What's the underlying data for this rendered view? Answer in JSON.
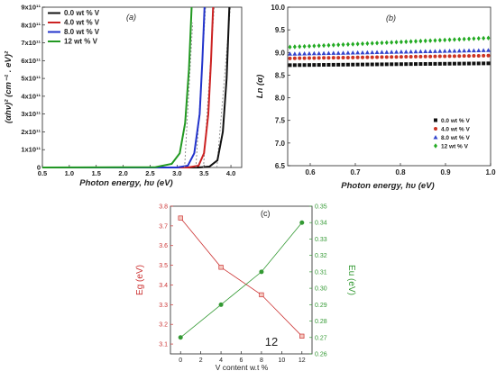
{
  "chart_data": [
    {
      "panel": "(a)",
      "type": "line",
      "xlabel": "Photon energy, hυ (eV)",
      "ylabel": "(αhν)² (cm⁻¹ . eV)²",
      "xlim": [
        0.5,
        4.2
      ],
      "ylim": [
        0,
        900000000000.0
      ],
      "xticks": [
        0.5,
        1.0,
        1.5,
        2.0,
        2.5,
        3.0,
        3.5,
        4.0
      ],
      "xtick_labels": [
        "0.5",
        "1.0",
        "1.5",
        "2.0",
        "2.5",
        "3.0",
        "3.5",
        "4.0"
      ],
      "yticks": [
        0,
        100000000000.0,
        200000000000.0,
        300000000000.0,
        400000000000.0,
        500000000000.0,
        600000000000.0,
        700000000000.0,
        800000000000.0,
        900000000000.0
      ],
      "ytick_labels": [
        "0",
        "1x10¹¹",
        "2x10¹¹",
        "3x10¹¹",
        "4x10¹¹",
        "5x10¹¹",
        "6x10¹¹",
        "7x10¹¹",
        "8x10¹¹",
        "9x10¹¹"
      ],
      "legend_position": "top-left",
      "series": [
        {
          "name": "0.0 wt % V",
          "color": "#111111",
          "eg": 3.74,
          "xy": [
            [
              0.5,
              0
            ],
            [
              3.4,
              0
            ],
            [
              3.6,
              5000000000.0
            ],
            [
              3.75,
              40000000000.0
            ],
            [
              3.85,
              200000000000.0
            ],
            [
              3.92,
              500000000000.0
            ],
            [
              3.97,
              900000000000.0
            ]
          ]
        },
        {
          "name": "4.0 wt % V",
          "color": "#cc2222",
          "eg": 3.49,
          "xy": [
            [
              0.5,
              0
            ],
            [
              3.2,
              0
            ],
            [
              3.4,
              10000000000.0
            ],
            [
              3.5,
              80000000000.0
            ],
            [
              3.58,
              300000000000.0
            ],
            [
              3.63,
              600000000000.0
            ],
            [
              3.67,
              900000000000.0
            ]
          ]
        },
        {
          "name": "8.0 wt % V",
          "color": "#2233cc",
          "eg": 3.35,
          "xy": [
            [
              0.5,
              0
            ],
            [
              3.0,
              0
            ],
            [
              3.2,
              10000000000.0
            ],
            [
              3.32,
              80000000000.0
            ],
            [
              3.42,
              300000000000.0
            ],
            [
              3.47,
              600000000000.0
            ],
            [
              3.51,
              900000000000.0
            ]
          ]
        },
        {
          "name": "12 wt % V",
          "color": "#229922",
          "eg": 3.14,
          "xy": [
            [
              0.5,
              0
            ],
            [
              2.6,
              2000000000.0
            ],
            [
              2.9,
              20000000000.0
            ],
            [
              3.05,
              80000000000.0
            ],
            [
              3.15,
              250000000000.0
            ],
            [
              3.22,
              550000000000.0
            ],
            [
              3.27,
              900000000000.0
            ]
          ]
        }
      ]
    },
    {
      "panel": "(b)",
      "type": "scatter",
      "xlabel": "Photon energy, hυ (eV)",
      "ylabel": "Ln (α)",
      "xlim": [
        0.55,
        1.0
      ],
      "ylim": [
        6.5,
        10.0
      ],
      "xticks": [
        0.6,
        0.7,
        0.8,
        0.9,
        1.0
      ],
      "xtick_labels": [
        "0.6",
        "0.7",
        "0.8",
        "0.9",
        "1.0"
      ],
      "yticks": [
        6.5,
        7.0,
        7.5,
        8.0,
        8.5,
        9.0,
        9.5,
        10.0
      ],
      "ytick_labels": [
        "6.5",
        "7.0",
        "7.5",
        "8.0",
        "8.5",
        "9.0",
        "9.5",
        "10.0"
      ],
      "legend_position": "bottom-right",
      "series": [
        {
          "name": "0.0 wt % V",
          "color": "#111111",
          "marker": "square",
          "start": 8.72,
          "end": 8.76
        },
        {
          "name": "4.0 wt % V",
          "color": "#cc3322",
          "marker": "circle",
          "start": 8.87,
          "end": 8.93
        },
        {
          "name": "8.0 wt % V",
          "color": "#3344cc",
          "marker": "triangle",
          "start": 8.97,
          "end": 9.05
        },
        {
          "name": "12 wt % V",
          "color": "#22aa22",
          "marker": "diamond",
          "start": 9.12,
          "end": 9.32
        }
      ]
    },
    {
      "panel": "(c)",
      "type": "line",
      "xlabel": "V content w.t %",
      "ylabel_left": "Eg (eV)",
      "ylabel_right": "Eu (eV)",
      "xlim": [
        -1,
        13
      ],
      "xticks": [
        0,
        2,
        4,
        6,
        8,
        10,
        12
      ],
      "xtick_labels": [
        "0",
        "2",
        "4",
        "6",
        "8",
        "10",
        "12"
      ],
      "ylim_left": [
        3.05,
        3.8
      ],
      "yticks_left": [
        3.1,
        3.2,
        3.3,
        3.4,
        3.5,
        3.6,
        3.7,
        3.8
      ],
      "ytick_labels_left": [
        "3.1",
        "3.2",
        "3.3",
        "3.4",
        "3.5",
        "3.6",
        "3.7",
        "3.8"
      ],
      "ylim_right": [
        0.26,
        0.35
      ],
      "yticks_right": [
        0.26,
        0.27,
        0.28,
        0.29,
        0.3,
        0.31,
        0.32,
        0.33,
        0.34,
        0.35
      ],
      "ytick_labels_right": [
        "0.26",
        "0.27",
        "0.28",
        "0.29",
        "0.30",
        "0.31",
        "0.32",
        "0.33",
        "0.34",
        "0.35"
      ],
      "x": [
        0,
        4,
        8,
        12
      ],
      "series": [
        {
          "axis": "left",
          "color": "#cc3333",
          "marker": "square",
          "values": [
            3.74,
            3.49,
            3.35,
            3.14
          ]
        },
        {
          "axis": "right",
          "color": "#339933",
          "marker": "circle",
          "values": [
            0.27,
            0.29,
            0.31,
            0.34
          ]
        }
      ],
      "page_number": "12"
    }
  ]
}
